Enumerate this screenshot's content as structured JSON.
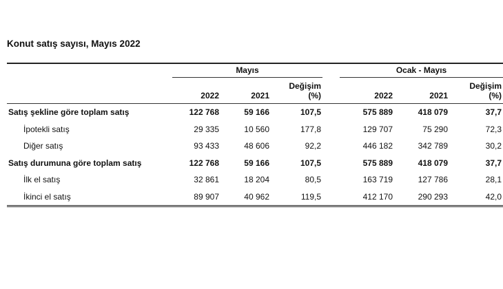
{
  "title": "Konut satış sayısı, Mayıs 2022",
  "groups": [
    "Mayıs",
    "Ocak - Mayıs"
  ],
  "change_label": "Değişim",
  "change_unit": "(%)",
  "years": [
    "2022",
    "2021"
  ],
  "rows": [
    {
      "label": "Satış şekline göre toplam satış",
      "bold": true,
      "values": [
        "122 768",
        "59 166",
        "107,5",
        "575 889",
        "418 079",
        "37,7"
      ]
    },
    {
      "label": "İpotekli satış",
      "bold": false,
      "values": [
        "29 335",
        "10 560",
        "177,8",
        "129 707",
        "75 290",
        "72,3"
      ]
    },
    {
      "label": "Diğer satış",
      "bold": false,
      "values": [
        "93 433",
        "48 606",
        "92,2",
        "446 182",
        "342 789",
        "30,2"
      ]
    },
    {
      "label": "Satış durumuna göre toplam satış",
      "bold": true,
      "values": [
        "122 768",
        "59 166",
        "107,5",
        "575 889",
        "418 079",
        "37,7"
      ]
    },
    {
      "label": "İlk el satış",
      "bold": false,
      "values": [
        "32 861",
        "18 204",
        "80,5",
        "163 719",
        "127 786",
        "28,1"
      ]
    },
    {
      "label": "İkinci el satış",
      "bold": false,
      "values": [
        "89 907",
        "40 962",
        "119,5",
        "412 170",
        "290 293",
        "42,0"
      ]
    }
  ]
}
